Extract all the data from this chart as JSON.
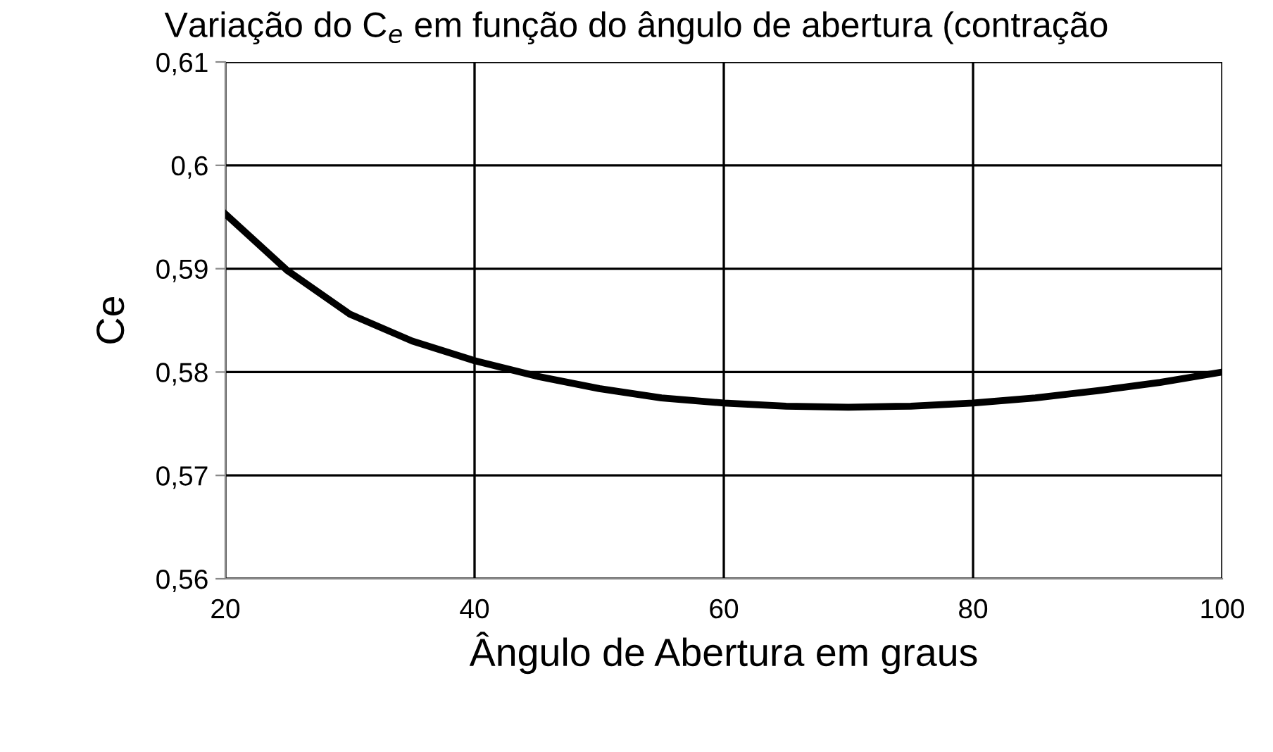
{
  "chart_data": {
    "type": "line",
    "title": "Variação do C$_{e}$ em função do ângulo de abertura (contração",
    "xlabel": "Ângulo de Abertura em graus",
    "ylabel": "Ce",
    "x": [
      20,
      25,
      30,
      35,
      40,
      45,
      50,
      55,
      60,
      65,
      70,
      75,
      80,
      85,
      90,
      95,
      100
    ],
    "series": [
      {
        "color": "#000000",
        "values": [
          0.5953,
          0.5898,
          0.5856,
          0.583,
          0.5811,
          0.5796,
          0.5784,
          0.5775,
          0.577,
          0.5767,
          0.5766,
          0.5767,
          0.577,
          0.5775,
          0.5782,
          0.579,
          0.58
        ]
      }
    ],
    "xlim": [
      20,
      100
    ],
    "xticks": [
      20,
      40,
      60,
      80,
      100
    ],
    "ylim": [
      0.56,
      0.61
    ],
    "yticks": [
      {
        "value": 0.56,
        "label": "0,56"
      },
      {
        "value": 0.57,
        "label": "0,57"
      },
      {
        "value": 0.58,
        "label": "0,58"
      },
      {
        "value": 0.59,
        "label": "0,59"
      },
      {
        "value": 0.6,
        "label": "0,6"
      },
      {
        "value": 0.61,
        "label": "0,61"
      }
    ],
    "grid": true,
    "marker": "none",
    "line_style": "solid"
  }
}
